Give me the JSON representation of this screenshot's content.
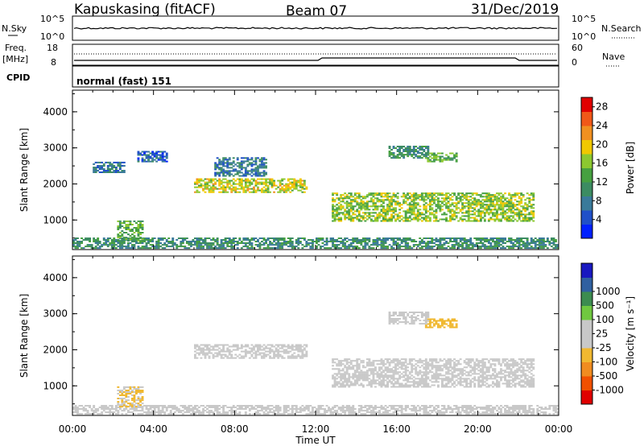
{
  "header": {
    "station": "Kapuskasing (fitACF)",
    "beam": "Beam 07",
    "date": "31/Dec/2019"
  },
  "nsky_panel": {
    "left_label": "N.Sky",
    "right_label": "N.Search",
    "left_ticks": [
      "10^5",
      "10^0"
    ],
    "right_ticks": [
      "10^5",
      "10^0"
    ]
  },
  "freq_panel": {
    "left_label_1": "Freq.",
    "left_label_2": "[MHz]",
    "right_label": "Nave",
    "left_ticks": [
      "18",
      "8"
    ],
    "right_ticks": [
      "60",
      "0"
    ]
  },
  "cpid_panel": {
    "label": "CPID",
    "mode": "normal (fast) 151"
  },
  "colors": {
    "power": [
      "#0020ff",
      "#2050c8",
      "#3a7a9a",
      "#3c8c62",
      "#46a040",
      "#8cc830",
      "#f0c800",
      "#f09020",
      "#f05818",
      "#e00000"
    ],
    "velocity": [
      "#e00000",
      "#f05000",
      "#f08c20",
      "#f0b830",
      "#c8c8c8",
      "#c8c8c8",
      "#70c840",
      "#3c8c50",
      "#3060a0",
      "#1818c0"
    ]
  },
  "chart_data": [
    {
      "type": "heatmap",
      "name_hint": "power",
      "ylabel": "Slant Range [km]",
      "xlabel": "Time UT",
      "ylim": [
        180,
        4600
      ],
      "x_ticks": [
        "00:00",
        "04:00",
        "08:00",
        "12:00",
        "16:00",
        "20:00",
        "00:00"
      ],
      "y_ticks": [
        "1000",
        "2000",
        "3000",
        "4000"
      ],
      "colorbar": {
        "label": "Power [dB]",
        "ticks": [
          "4",
          "8",
          "12",
          "16",
          "20",
          "24",
          "28"
        ],
        "range": [
          0,
          30
        ]
      },
      "regions": [
        {
          "t0": 0.0,
          "t1": 24.0,
          "r0": 200,
          "r1": 500,
          "value": 10
        },
        {
          "t0": 2.2,
          "t1": 3.5,
          "r0": 400,
          "r1": 950,
          "value": 14
        },
        {
          "t0": 6.0,
          "t1": 11.5,
          "r0": 1750,
          "r1": 2150,
          "value": 18
        },
        {
          "t0": 7.0,
          "t1": 9.5,
          "r0": 2200,
          "r1": 2700,
          "value": 8
        },
        {
          "t0": 1.0,
          "t1": 2.6,
          "r0": 2300,
          "r1": 2600,
          "value": 8
        },
        {
          "t0": 3.2,
          "t1": 4.6,
          "r0": 2600,
          "r1": 2900,
          "value": 6
        },
        {
          "t0": 12.8,
          "t1": 22.8,
          "r0": 950,
          "r1": 1750,
          "value": 16
        },
        {
          "t0": 15.6,
          "t1": 17.6,
          "r0": 2700,
          "r1": 3050,
          "value": 10
        },
        {
          "t0": 17.4,
          "t1": 19.0,
          "r0": 2600,
          "r1": 2850,
          "value": 14
        }
      ]
    },
    {
      "type": "heatmap",
      "name_hint": "velocity",
      "ylabel": "Slant Range [km]",
      "xlabel": "Time UT",
      "ylim": [
        180,
        4600
      ],
      "x_ticks": [
        "00:00",
        "04:00",
        "08:00",
        "12:00",
        "16:00",
        "20:00",
        "00:00"
      ],
      "y_ticks": [
        "1000",
        "2000",
        "3000",
        "4000"
      ],
      "colorbar": {
        "label": "Velocity [m s⁻¹]",
        "ticks": [
          "-1000",
          "-500",
          "-100",
          "-25",
          "25",
          "100",
          "500",
          "1000"
        ],
        "range": [
          -1500,
          1500
        ]
      },
      "regions": [
        {
          "t0": 0.0,
          "t1": 24.0,
          "r0": 200,
          "r1": 450,
          "value": -60
        },
        {
          "t0": 2.2,
          "t1": 3.5,
          "r0": 400,
          "r1": 950,
          "value": -300
        },
        {
          "t0": 6.0,
          "t1": 11.5,
          "r0": 1750,
          "r1": 2150,
          "value": 0
        },
        {
          "t0": 12.8,
          "t1": 22.8,
          "r0": 950,
          "r1": 1750,
          "value": 0
        },
        {
          "t0": 17.4,
          "t1": 19.0,
          "r0": 2600,
          "r1": 2850,
          "value": -400
        },
        {
          "t0": 15.6,
          "t1": 17.6,
          "r0": 2700,
          "r1": 3050,
          "value": 50
        }
      ]
    }
  ]
}
